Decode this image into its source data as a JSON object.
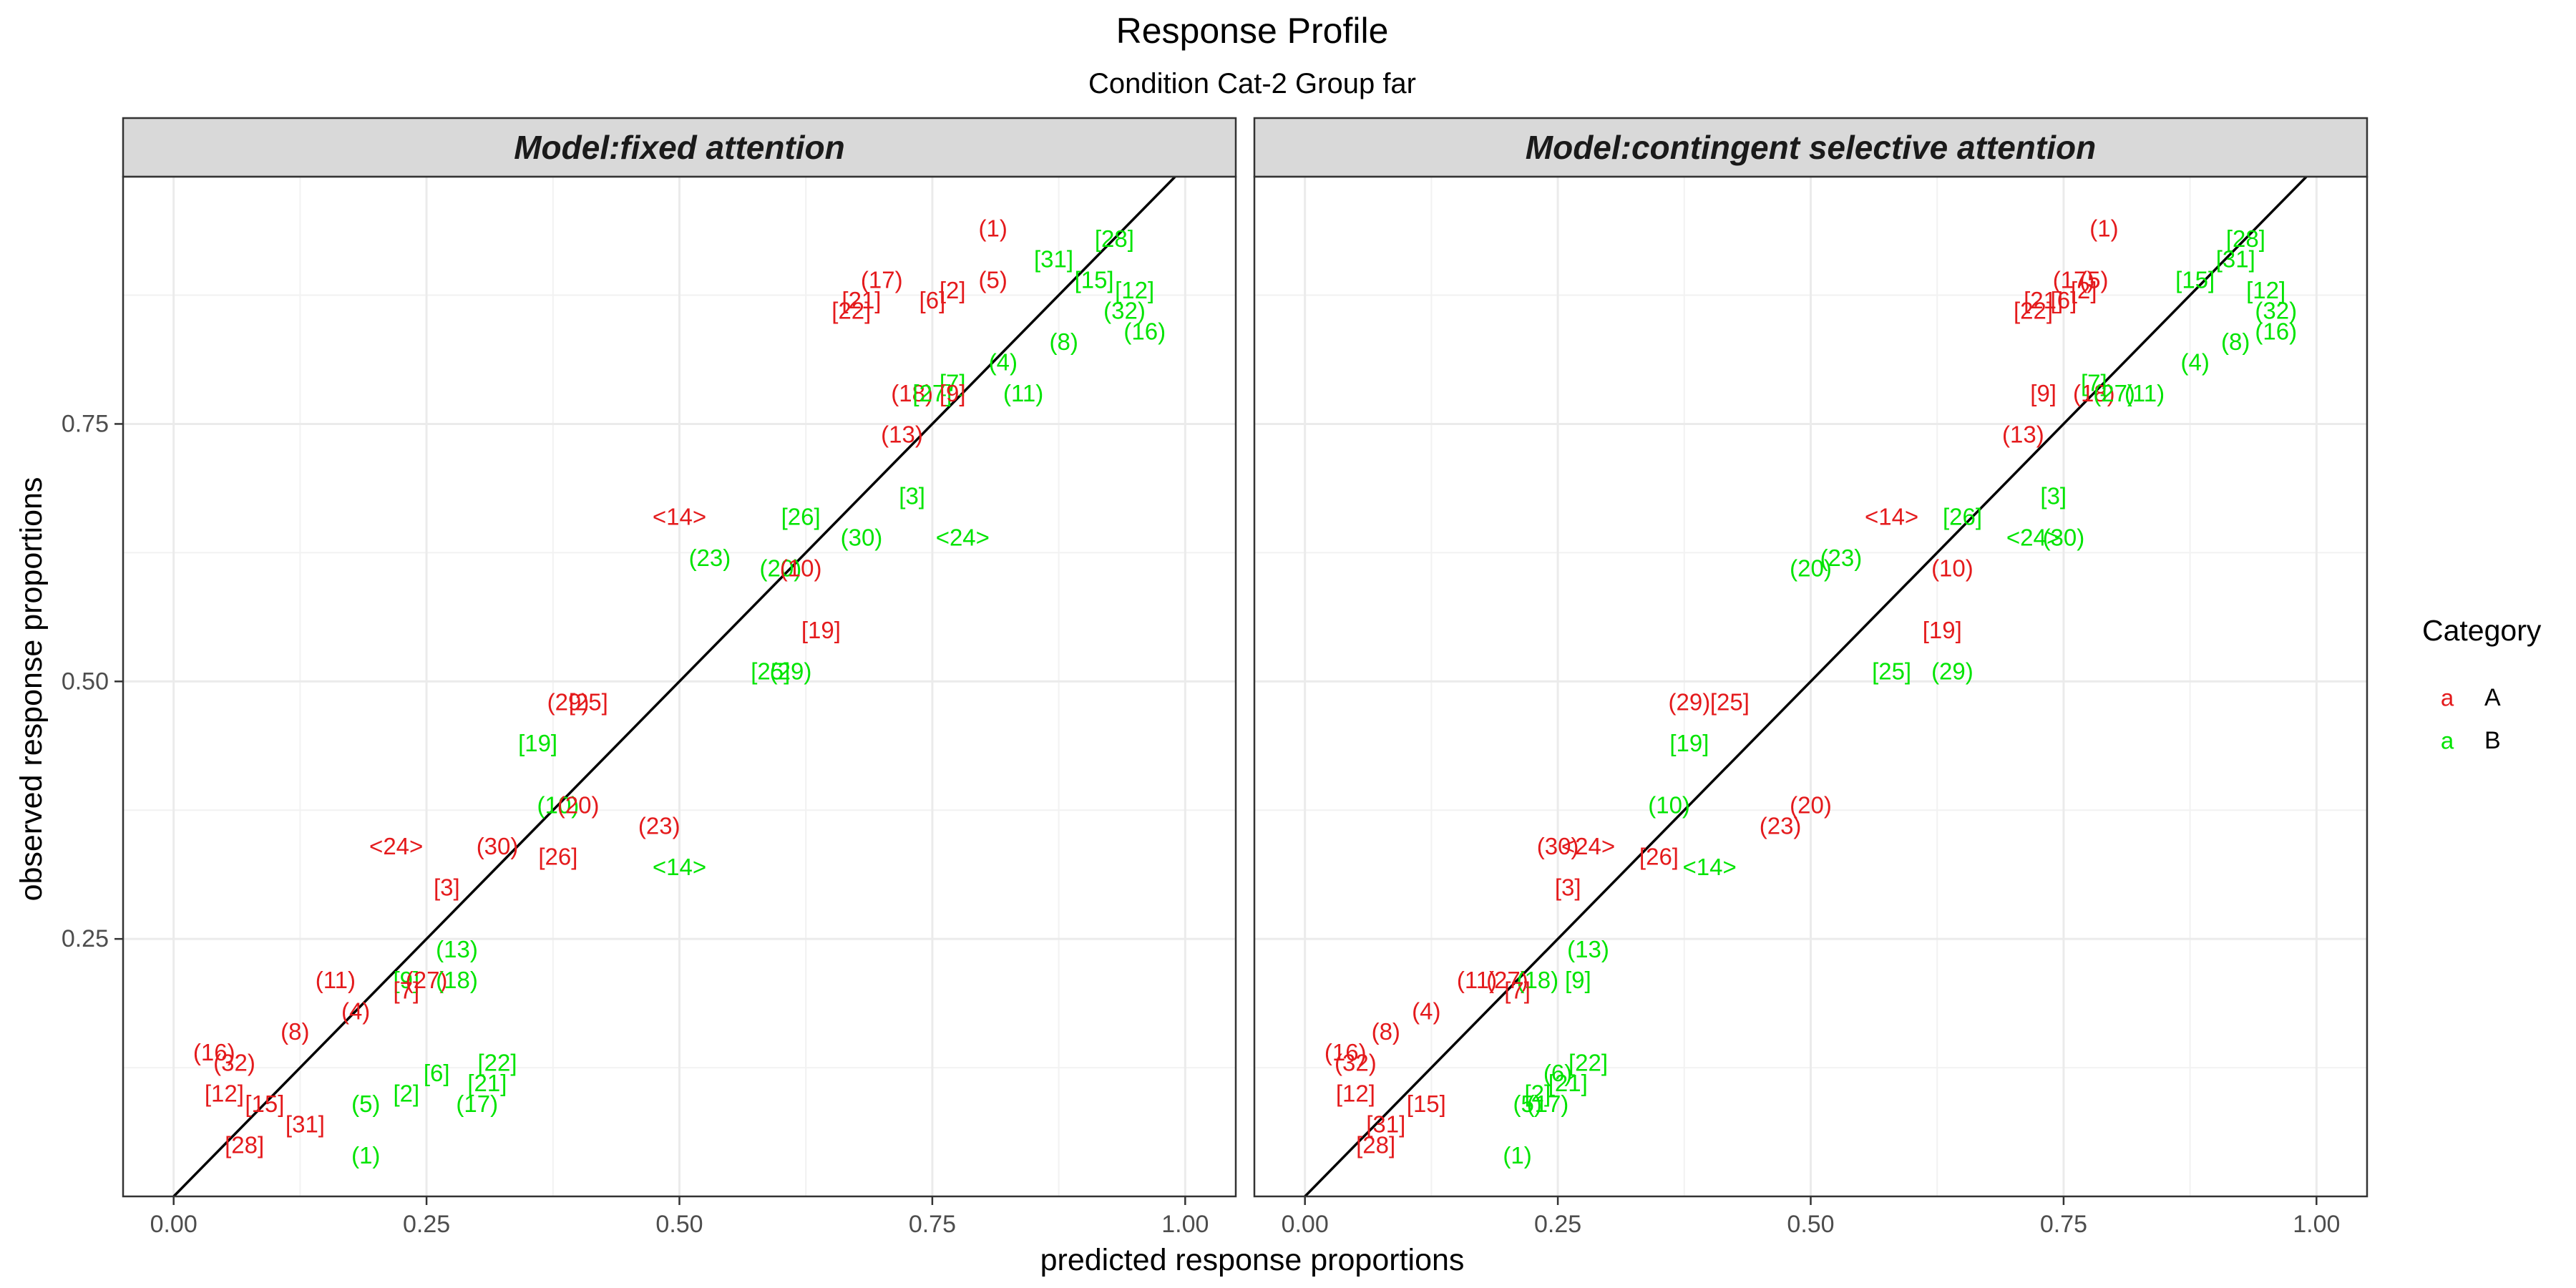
{
  "chart_data": {
    "type": "scatter",
    "title": "Response Profile",
    "subtitle": "Condition Cat-2 Group far",
    "xlabel": "predicted response proportions",
    "ylabel": "observed response proportions",
    "xlim": [
      -0.05,
      1.05
    ],
    "ylim": [
      0.0,
      0.99
    ],
    "x_ticks": [
      0.0,
      0.25,
      0.5,
      0.75,
      1.0
    ],
    "x_tick_labels": [
      "0.00",
      "0.25",
      "0.50",
      "0.75",
      "1.00"
    ],
    "y_ticks": [
      0.25,
      0.5,
      0.75
    ],
    "y_tick_labels": [
      "0.25",
      "0.50",
      "0.75"
    ],
    "grid": true,
    "reference_line": "identity",
    "legend": {
      "title": "Category",
      "position": "right",
      "entries": [
        {
          "key": "A",
          "glyph": "a",
          "color": "#e41a1c"
        },
        {
          "key": "B",
          "glyph": "a",
          "color": "#00e400"
        }
      ]
    },
    "panels": [
      {
        "title": "Model:fixed attention",
        "points": [
          {
            "label": "(1)",
            "x": 0.81,
            "y": 0.94,
            "category": "A"
          },
          {
            "label": "[28]",
            "x": 0.93,
            "y": 0.93,
            "category": "B"
          },
          {
            "label": "[31]",
            "x": 0.87,
            "y": 0.91,
            "category": "B"
          },
          {
            "label": "(17)",
            "x": 0.7,
            "y": 0.89,
            "category": "A"
          },
          {
            "label": "(5)",
            "x": 0.81,
            "y": 0.89,
            "category": "A"
          },
          {
            "label": "[2]",
            "x": 0.77,
            "y": 0.88,
            "category": "A"
          },
          {
            "label": "[21]",
            "x": 0.68,
            "y": 0.87,
            "category": "A"
          },
          {
            "label": "[6]",
            "x": 0.75,
            "y": 0.87,
            "category": "A"
          },
          {
            "label": "[22]",
            "x": 0.67,
            "y": 0.86,
            "category": "A"
          },
          {
            "label": "[15]",
            "x": 0.91,
            "y": 0.89,
            "category": "B"
          },
          {
            "label": "[12]",
            "x": 0.95,
            "y": 0.88,
            "category": "B"
          },
          {
            "label": "(32)",
            "x": 0.94,
            "y": 0.86,
            "category": "B"
          },
          {
            "label": "(16)",
            "x": 0.96,
            "y": 0.84,
            "category": "B"
          },
          {
            "label": "(8)",
            "x": 0.88,
            "y": 0.83,
            "category": "B"
          },
          {
            "label": "(4)",
            "x": 0.82,
            "y": 0.81,
            "category": "B"
          },
          {
            "label": "(18)",
            "x": 0.73,
            "y": 0.78,
            "category": "A"
          },
          {
            "label": "[27]",
            "x": 0.75,
            "y": 0.78,
            "category": "B"
          },
          {
            "label": "[7]",
            "x": 0.77,
            "y": 0.79,
            "category": "B"
          },
          {
            "label": "[9]",
            "x": 0.77,
            "y": 0.78,
            "category": "A"
          },
          {
            "label": "(11)",
            "x": 0.84,
            "y": 0.78,
            "category": "B"
          },
          {
            "label": "(13)",
            "x": 0.72,
            "y": 0.74,
            "category": "A"
          },
          {
            "label": "[3]",
            "x": 0.73,
            "y": 0.68,
            "category": "B"
          },
          {
            "label": "<14>",
            "x": 0.5,
            "y": 0.66,
            "category": "A"
          },
          {
            "label": "[26]",
            "x": 0.62,
            "y": 0.66,
            "category": "B"
          },
          {
            "label": "(30)",
            "x": 0.68,
            "y": 0.64,
            "category": "B"
          },
          {
            "label": "<24>",
            "x": 0.78,
            "y": 0.64,
            "category": "B"
          },
          {
            "label": "(23)",
            "x": 0.53,
            "y": 0.62,
            "category": "B"
          },
          {
            "label": "(20)",
            "x": 0.6,
            "y": 0.61,
            "category": "B"
          },
          {
            "label": "(10)",
            "x": 0.62,
            "y": 0.61,
            "category": "A"
          },
          {
            "label": "[19]",
            "x": 0.64,
            "y": 0.55,
            "category": "A"
          },
          {
            "label": "[25]",
            "x": 0.59,
            "y": 0.51,
            "category": "B"
          },
          {
            "label": "(29)",
            "x": 0.61,
            "y": 0.51,
            "category": "B"
          },
          {
            "label": "(29)",
            "x": 0.39,
            "y": 0.48,
            "category": "A"
          },
          {
            "label": "[25]",
            "x": 0.41,
            "y": 0.48,
            "category": "A"
          },
          {
            "label": "[19]",
            "x": 0.36,
            "y": 0.44,
            "category": "B"
          },
          {
            "label": "(10)",
            "x": 0.38,
            "y": 0.38,
            "category": "B"
          },
          {
            "label": "(20)",
            "x": 0.4,
            "y": 0.38,
            "category": "A"
          },
          {
            "label": "(23)",
            "x": 0.48,
            "y": 0.36,
            "category": "A"
          },
          {
            "label": "<24>",
            "x": 0.22,
            "y": 0.34,
            "category": "A"
          },
          {
            "label": "(30)",
            "x": 0.32,
            "y": 0.34,
            "category": "A"
          },
          {
            "label": "[26]",
            "x": 0.38,
            "y": 0.33,
            "category": "A"
          },
          {
            "label": "<14>",
            "x": 0.5,
            "y": 0.32,
            "category": "B"
          },
          {
            "label": "[3]",
            "x": 0.27,
            "y": 0.3,
            "category": "A"
          },
          {
            "label": "(13)",
            "x": 0.28,
            "y": 0.24,
            "category": "B"
          },
          {
            "label": "(11)",
            "x": 0.16,
            "y": 0.21,
            "category": "A"
          },
          {
            "label": "[9]",
            "x": 0.23,
            "y": 0.21,
            "category": "B"
          },
          {
            "label": "[7]",
            "x": 0.23,
            "y": 0.2,
            "category": "A"
          },
          {
            "label": "(27)",
            "x": 0.25,
            "y": 0.21,
            "category": "A"
          },
          {
            "label": "(18)",
            "x": 0.28,
            "y": 0.21,
            "category": "B"
          },
          {
            "label": "(4)",
            "x": 0.18,
            "y": 0.18,
            "category": "A"
          },
          {
            "label": "(8)",
            "x": 0.12,
            "y": 0.16,
            "category": "A"
          },
          {
            "label": "(16)",
            "x": 0.04,
            "y": 0.14,
            "category": "A"
          },
          {
            "label": "(32)",
            "x": 0.06,
            "y": 0.13,
            "category": "A"
          },
          {
            "label": "[22]",
            "x": 0.32,
            "y": 0.13,
            "category": "B"
          },
          {
            "label": "[6]",
            "x": 0.26,
            "y": 0.12,
            "category": "B"
          },
          {
            "label": "[21]",
            "x": 0.31,
            "y": 0.11,
            "category": "B"
          },
          {
            "label": "[12]",
            "x": 0.05,
            "y": 0.1,
            "category": "A"
          },
          {
            "label": "[2]",
            "x": 0.23,
            "y": 0.1,
            "category": "B"
          },
          {
            "label": "(5)",
            "x": 0.19,
            "y": 0.09,
            "category": "B"
          },
          {
            "label": "[15]",
            "x": 0.09,
            "y": 0.09,
            "category": "A"
          },
          {
            "label": "(17)",
            "x": 0.3,
            "y": 0.09,
            "category": "B"
          },
          {
            "label": "[31]",
            "x": 0.13,
            "y": 0.07,
            "category": "A"
          },
          {
            "label": "[28]",
            "x": 0.07,
            "y": 0.05,
            "category": "A"
          },
          {
            "label": "(1)",
            "x": 0.19,
            "y": 0.04,
            "category": "B"
          }
        ]
      },
      {
        "title": "Model:contingent selective attention",
        "points": [
          {
            "label": "(1)",
            "x": 0.79,
            "y": 0.94,
            "category": "A"
          },
          {
            "label": "[28]",
            "x": 0.93,
            "y": 0.93,
            "category": "B"
          },
          {
            "label": "[31]",
            "x": 0.92,
            "y": 0.91,
            "category": "B"
          },
          {
            "label": "[15]",
            "x": 0.88,
            "y": 0.89,
            "category": "B"
          },
          {
            "label": "[12]",
            "x": 0.95,
            "y": 0.88,
            "category": "B"
          },
          {
            "label": "(32)",
            "x": 0.96,
            "y": 0.86,
            "category": "B"
          },
          {
            "label": "(16)",
            "x": 0.96,
            "y": 0.84,
            "category": "B"
          },
          {
            "label": "(17)",
            "x": 0.76,
            "y": 0.89,
            "category": "A"
          },
          {
            "label": "(5)",
            "x": 0.78,
            "y": 0.89,
            "category": "A"
          },
          {
            "label": "[2]",
            "x": 0.77,
            "y": 0.88,
            "category": "A"
          },
          {
            "label": "[21]",
            "x": 0.73,
            "y": 0.87,
            "category": "A"
          },
          {
            "label": "[6]",
            "x": 0.75,
            "y": 0.87,
            "category": "A"
          },
          {
            "label": "[22]",
            "x": 0.72,
            "y": 0.86,
            "category": "A"
          },
          {
            "label": "(8)",
            "x": 0.92,
            "y": 0.83,
            "category": "B"
          },
          {
            "label": "(4)",
            "x": 0.88,
            "y": 0.81,
            "category": "B"
          },
          {
            "label": "[9]",
            "x": 0.73,
            "y": 0.78,
            "category": "A"
          },
          {
            "label": "(18)",
            "x": 0.78,
            "y": 0.78,
            "category": "A"
          },
          {
            "label": "[7]",
            "x": 0.78,
            "y": 0.79,
            "category": "B"
          },
          {
            "label": "(27)",
            "x": 0.8,
            "y": 0.78,
            "category": "B"
          },
          {
            "label": "(11)",
            "x": 0.83,
            "y": 0.78,
            "category": "B"
          },
          {
            "label": "(13)",
            "x": 0.71,
            "y": 0.74,
            "category": "A"
          },
          {
            "label": "[3]",
            "x": 0.74,
            "y": 0.68,
            "category": "B"
          },
          {
            "label": "<14>",
            "x": 0.58,
            "y": 0.66,
            "category": "A"
          },
          {
            "label": "[26]",
            "x": 0.65,
            "y": 0.66,
            "category": "B"
          },
          {
            "label": "<24>",
            "x": 0.72,
            "y": 0.64,
            "category": "B"
          },
          {
            "label": "(30)",
            "x": 0.75,
            "y": 0.64,
            "category": "B"
          },
          {
            "label": "(23)",
            "x": 0.53,
            "y": 0.62,
            "category": "B"
          },
          {
            "label": "(20)",
            "x": 0.5,
            "y": 0.61,
            "category": "B"
          },
          {
            "label": "(10)",
            "x": 0.64,
            "y": 0.61,
            "category": "A"
          },
          {
            "label": "[19]",
            "x": 0.63,
            "y": 0.55,
            "category": "A"
          },
          {
            "label": "[25]",
            "x": 0.58,
            "y": 0.51,
            "category": "B"
          },
          {
            "label": "(29)",
            "x": 0.64,
            "y": 0.51,
            "category": "B"
          },
          {
            "label": "(29)",
            "x": 0.38,
            "y": 0.48,
            "category": "A"
          },
          {
            "label": "[25]",
            "x": 0.42,
            "y": 0.48,
            "category": "A"
          },
          {
            "label": "[19]",
            "x": 0.38,
            "y": 0.44,
            "category": "B"
          },
          {
            "label": "(10)",
            "x": 0.36,
            "y": 0.38,
            "category": "B"
          },
          {
            "label": "(20)",
            "x": 0.5,
            "y": 0.38,
            "category": "A"
          },
          {
            "label": "(23)",
            "x": 0.47,
            "y": 0.36,
            "category": "A"
          },
          {
            "label": "(30)",
            "x": 0.25,
            "y": 0.34,
            "category": "A"
          },
          {
            "label": "<24>",
            "x": 0.28,
            "y": 0.34,
            "category": "A"
          },
          {
            "label": "[26]",
            "x": 0.35,
            "y": 0.33,
            "category": "A"
          },
          {
            "label": "<14>",
            "x": 0.4,
            "y": 0.32,
            "category": "B"
          },
          {
            "label": "[3]",
            "x": 0.26,
            "y": 0.3,
            "category": "A"
          },
          {
            "label": "(13)",
            "x": 0.28,
            "y": 0.24,
            "category": "B"
          },
          {
            "label": "(11)",
            "x": 0.17,
            "y": 0.21,
            "category": "A"
          },
          {
            "label": "(27)",
            "x": 0.2,
            "y": 0.21,
            "category": "A"
          },
          {
            "label": "(18)",
            "x": 0.23,
            "y": 0.21,
            "category": "B"
          },
          {
            "label": "[9]",
            "x": 0.27,
            "y": 0.21,
            "category": "B"
          },
          {
            "label": "[7]",
            "x": 0.21,
            "y": 0.2,
            "category": "A"
          },
          {
            "label": "(4)",
            "x": 0.12,
            "y": 0.18,
            "category": "A"
          },
          {
            "label": "(8)",
            "x": 0.08,
            "y": 0.16,
            "category": "A"
          },
          {
            "label": "(16)",
            "x": 0.04,
            "y": 0.14,
            "category": "A"
          },
          {
            "label": "(32)",
            "x": 0.05,
            "y": 0.13,
            "category": "A"
          },
          {
            "label": "[22]",
            "x": 0.28,
            "y": 0.13,
            "category": "B"
          },
          {
            "label": "(6)",
            "x": 0.25,
            "y": 0.12,
            "category": "B"
          },
          {
            "label": "[21]",
            "x": 0.26,
            "y": 0.11,
            "category": "B"
          },
          {
            "label": "[12]",
            "x": 0.05,
            "y": 0.1,
            "category": "A"
          },
          {
            "label": "[2]",
            "x": 0.23,
            "y": 0.1,
            "category": "B"
          },
          {
            "label": "(5)",
            "x": 0.22,
            "y": 0.09,
            "category": "B"
          },
          {
            "label": "(17)",
            "x": 0.24,
            "y": 0.09,
            "category": "B"
          },
          {
            "label": "[15]",
            "x": 0.12,
            "y": 0.09,
            "category": "A"
          },
          {
            "label": "[31]",
            "x": 0.08,
            "y": 0.07,
            "category": "A"
          },
          {
            "label": "[28]",
            "x": 0.07,
            "y": 0.05,
            "category": "A"
          },
          {
            "label": "(1)",
            "x": 0.21,
            "y": 0.04,
            "category": "B"
          }
        ]
      }
    ]
  }
}
